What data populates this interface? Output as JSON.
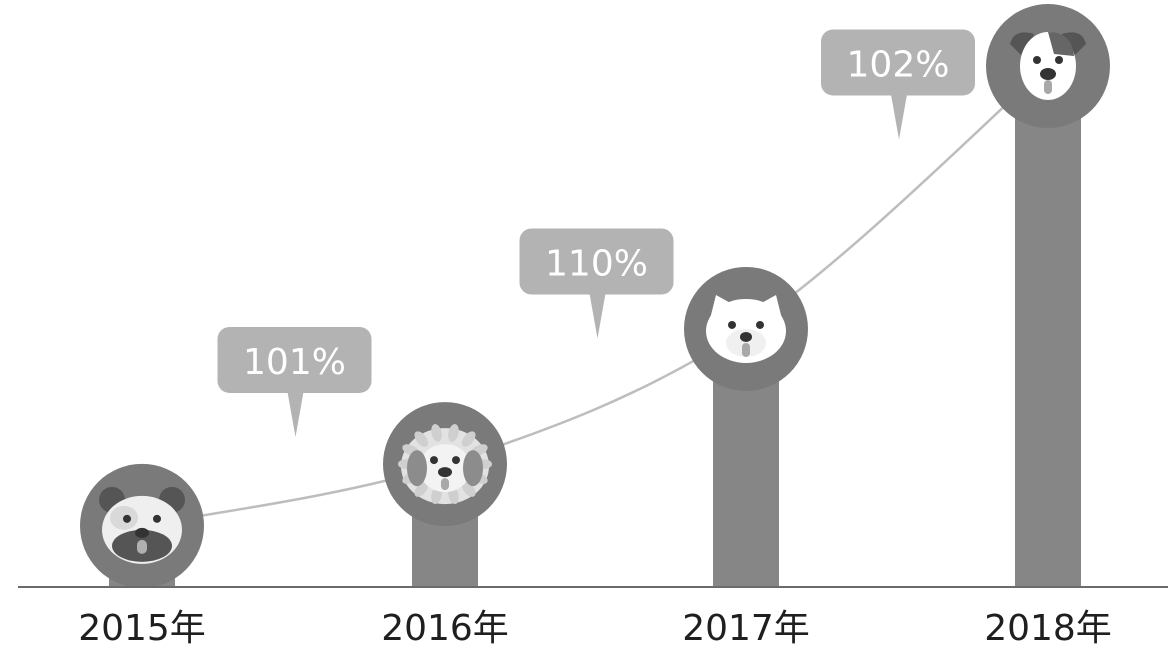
{
  "chart_data": {
    "type": "bar",
    "title": "",
    "xlabel": "",
    "ylabel": "",
    "categories": [
      "2015年",
      "2016年",
      "2017年",
      "2018年"
    ],
    "values": [
      1.0,
      2.01,
      4.22,
      8.52
    ],
    "ylim": [
      0,
      8.52
    ],
    "growth_labels": [
      "101%",
      "110%",
      "102%"
    ],
    "grid": false,
    "legend": "none",
    "colors": {
      "bar": "#868686",
      "circle": "#7a7a7a",
      "bubble": "#b3b3b3",
      "curve": "#bdbdbd",
      "axis": "#6b6b6b",
      "label": "#1f1f1f"
    },
    "icons": [
      "bulldog-face-icon",
      "shih-tzu-face-icon",
      "samoyed-face-icon",
      "jack-russell-face-icon"
    ]
  }
}
